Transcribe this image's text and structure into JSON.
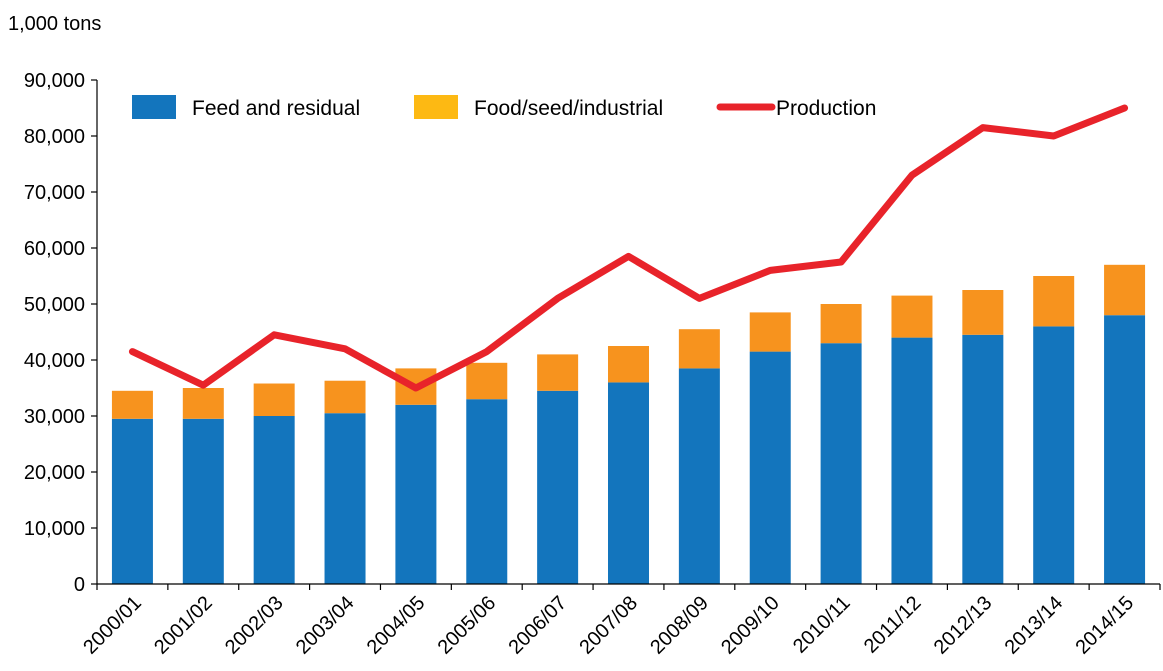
{
  "chart_data": {
    "type": "bar",
    "stacked": true,
    "unit_label": "1,000 tons",
    "categories": [
      "2000/01",
      "2001/02",
      "2002/03",
      "2003/04",
      "2004/05",
      "2005/06",
      "2006/07",
      "2007/08",
      "2008/09",
      "2009/10",
      "2010/11",
      "2011/12",
      "2012/13",
      "2013/14",
      "2014/15"
    ],
    "series": [
      {
        "name": "Feed and residual",
        "type": "bar",
        "color": "#1375bd",
        "values": [
          29500,
          29500,
          30000,
          30500,
          32000,
          33000,
          34500,
          36000,
          38500,
          41500,
          43000,
          44000,
          44500,
          46000,
          48000
        ]
      },
      {
        "name": "Food/seed/industrial",
        "type": "bar",
        "color": "#f7931e",
        "legend_color": "#fdb913",
        "values": [
          5000,
          5500,
          5800,
          5800,
          6500,
          6500,
          6500,
          6500,
          7000,
          7000,
          7000,
          7500,
          8000,
          9000,
          9000
        ]
      },
      {
        "name": "Production",
        "type": "line",
        "color": "#e8232a",
        "values": [
          41500,
          35500,
          44500,
          42000,
          35000,
          41500,
          51000,
          58500,
          51000,
          56000,
          57500,
          73000,
          81500,
          80000,
          85000
        ]
      }
    ],
    "ylim": [
      0,
      90000
    ],
    "yticks": [
      "0",
      "10,000",
      "20,000",
      "30,000",
      "40,000",
      "50,000",
      "60,000",
      "70,000",
      "80,000",
      "90,000"
    ],
    "grid": false,
    "legend_position": "top"
  }
}
